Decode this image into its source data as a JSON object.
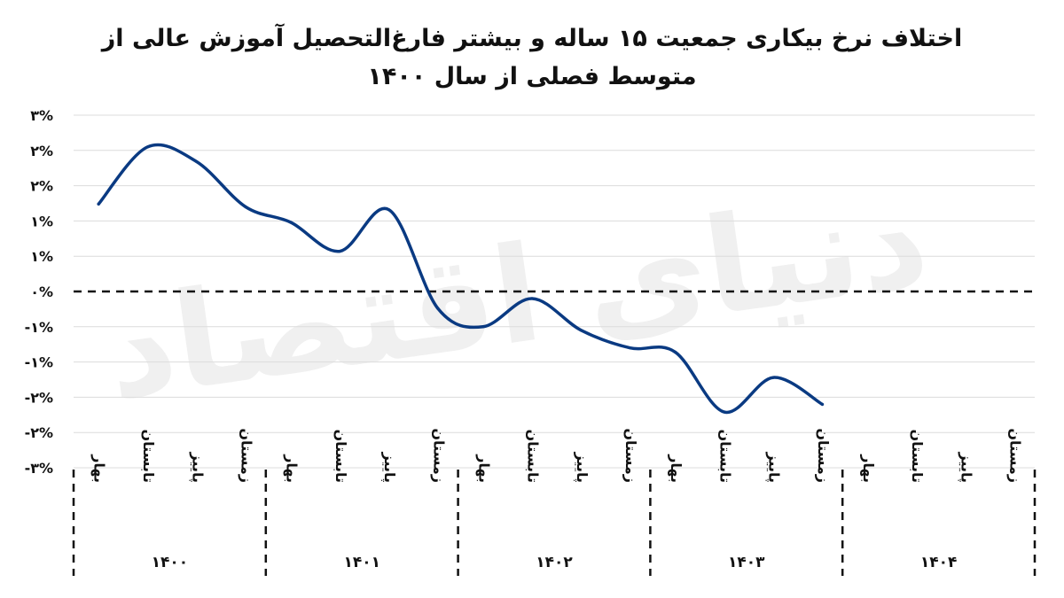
{
  "chart_data": {
    "type": "line",
    "title_line1": "اختلاف نرخ بیکاری جمعیت ۱۵ ساله و بیشتر فارغ‌التحصیل آموزش عالی از",
    "title_line2": "متوسط فصلی از سال ۱۴۰۰",
    "watermark": "دنیای اقتصاد",
    "y_tick_labels": [
      "-۳%",
      "-۲%",
      "-۲%",
      "-۱%",
      "-۱%",
      "۰%",
      "۱%",
      "۱%",
      "۲%",
      "۲%",
      "۳%"
    ],
    "ylim": [
      -2.5,
      2.5
    ],
    "y_step": 0.5,
    "reference_line": 0,
    "grid": true,
    "groups": [
      {
        "label": "۱۴۰۰",
        "seasons": [
          "بهار",
          "تابستان",
          "پاییز",
          "زمستان"
        ]
      },
      {
        "label": "۱۴۰۱",
        "seasons": [
          "بهار",
          "تابستان",
          "پاییز",
          "زمستان"
        ]
      },
      {
        "label": "۱۴۰۲",
        "seasons": [
          "بهار",
          "تابستان",
          "پاییز",
          "زمستان"
        ]
      },
      {
        "label": "۱۴۰۳",
        "seasons": [
          "بهار",
          "تابستان",
          "پاییز",
          "زمستان"
        ]
      },
      {
        "label": "۱۴۰۴",
        "seasons": [
          "بهار",
          "تابستان",
          "پاییز",
          "زمستان"
        ]
      }
    ],
    "series": [
      {
        "color": "#0a3a82",
        "values": [
          1.24,
          2.05,
          1.84,
          1.2,
          0.98,
          0.57,
          1.16,
          -0.24,
          -0.5,
          -0.1,
          -0.55,
          -0.8,
          -0.86,
          -1.71,
          -1.22,
          -1.6
        ]
      }
    ]
  }
}
